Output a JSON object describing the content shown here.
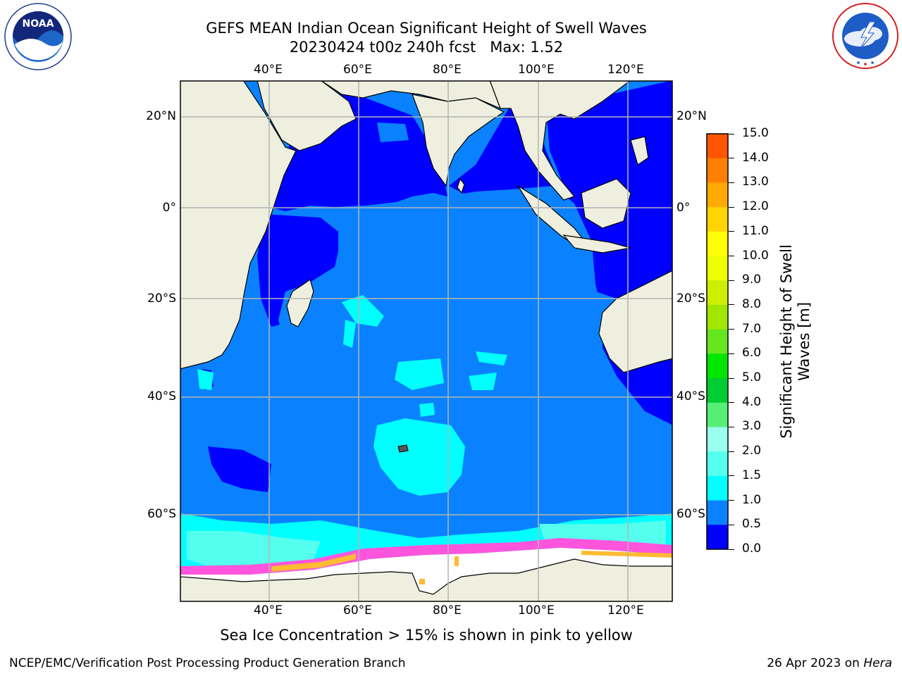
{
  "header": {
    "title_line1": "GEFS MEAN Indian Ocean Significant Height of Swell Waves",
    "title_line2": "20230424 t00z 240h fcst   Max: 1.52"
  },
  "logos": {
    "noaa_text": "NOAA",
    "noaa_ring_text": "NATIONAL OCEANIC AND ATMOSPHERIC ADMINISTRATION · U.S. DEPARTMENT OF COMMERCE",
    "nws_ring_text": "NATIONAL WEATHER SERVICE"
  },
  "map": {
    "lon_ticks": [
      "40°E",
      "60°E",
      "80°E",
      "100°E",
      "120°E"
    ],
    "lat_ticks": [
      "20°N",
      "0°",
      "20°S",
      "40°S",
      "60°S"
    ],
    "colors": {
      "land": "#efefdf",
      "ocean_0_0_5": "#0000ff",
      "ocean_0_5_1_0": "#0a82ff",
      "ocean_1_0_1_5": "#00ffff",
      "ocean_1_5_2_0": "#55ffee",
      "sea_ice": "#ffffff",
      "ice_edge_pink": "#ff55dd",
      "ice_orange": "#ffbb33",
      "grid": "#b4b4b4"
    }
  },
  "colorbar": {
    "labels": [
      "15.0",
      "14.0",
      "13.0",
      "12.0",
      "11.0",
      "10.0",
      "9.0",
      "8.0",
      "7.0",
      "6.0",
      "5.0",
      "4.0",
      "3.0",
      "2.0",
      "1.5",
      "1.0",
      "0.5",
      "0.0"
    ],
    "colors": [
      "#ff0000",
      "#ff2a00",
      "#ff5500",
      "#ff7f00",
      "#ffaa00",
      "#ffd400",
      "#ffff00",
      "#eeff00",
      "#ccee00",
      "#a0e600",
      "#66e61e",
      "#00e600",
      "#00cc33",
      "#55ee77",
      "#99ffee",
      "#55ffee",
      "#00ffff",
      "#0a82ff",
      "#0000ff"
    ],
    "title_line1": "Significant Height of Swell",
    "title_line2": "Waves [m]"
  },
  "footer": {
    "note": "Sea Ice Concentration > 15% is shown in pink to yellow",
    "credit_left": "NCEP/EMC/Verification Post Processing Product Generation Branch",
    "date": "26 Apr 2023 on",
    "machine": "Hera"
  }
}
